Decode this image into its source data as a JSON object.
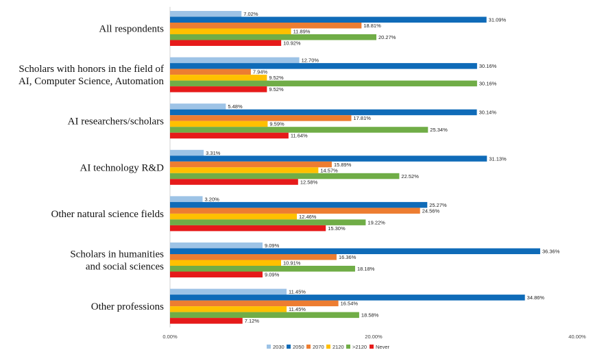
{
  "chart_data": {
    "type": "bar",
    "orientation": "horizontal",
    "categories": [
      [
        "All respondents"
      ],
      [
        "Scholars with honors in the field of",
        "AI, Computer Science, Automation"
      ],
      [
        "AI researchers/scholars"
      ],
      [
        "AI technology R&D"
      ],
      [
        "Other natural science fields"
      ],
      [
        "Scholars in humanities",
        "and social sciences"
      ],
      [
        "Other professions"
      ]
    ],
    "series": [
      {
        "name": "2030",
        "color": "#9dc3e6",
        "values": [
          7.02,
          12.7,
          5.48,
          3.31,
          3.2,
          9.09,
          11.45
        ]
      },
      {
        "name": "2050",
        "color": "#0f6bb8",
        "values": [
          31.09,
          30.16,
          30.14,
          31.13,
          25.27,
          36.36,
          34.86
        ]
      },
      {
        "name": "2070",
        "color": "#ed7d31",
        "values": [
          18.81,
          7.94,
          17.81,
          15.89,
          24.56,
          16.36,
          16.54
        ]
      },
      {
        "name": "2120",
        "color": "#ffc000",
        "values": [
          11.89,
          9.52,
          9.59,
          14.57,
          12.46,
          10.91,
          11.45
        ]
      },
      {
        "name": ">2120",
        "color": "#70ad47",
        "values": [
          20.27,
          30.16,
          25.34,
          22.52,
          19.22,
          18.18,
          18.58
        ]
      },
      {
        "name": "Never",
        "color": "#e61a1a",
        "values": [
          10.92,
          9.52,
          11.64,
          12.58,
          15.3,
          9.09,
          7.12
        ]
      }
    ],
    "xlim": [
      0,
      40
    ],
    "xticks": [
      "0.00%",
      "20.00%",
      "40.00%"
    ],
    "xtick_values": [
      0,
      20,
      40
    ],
    "value_suffix": "%",
    "grid": false,
    "legend_position": "bottom"
  }
}
